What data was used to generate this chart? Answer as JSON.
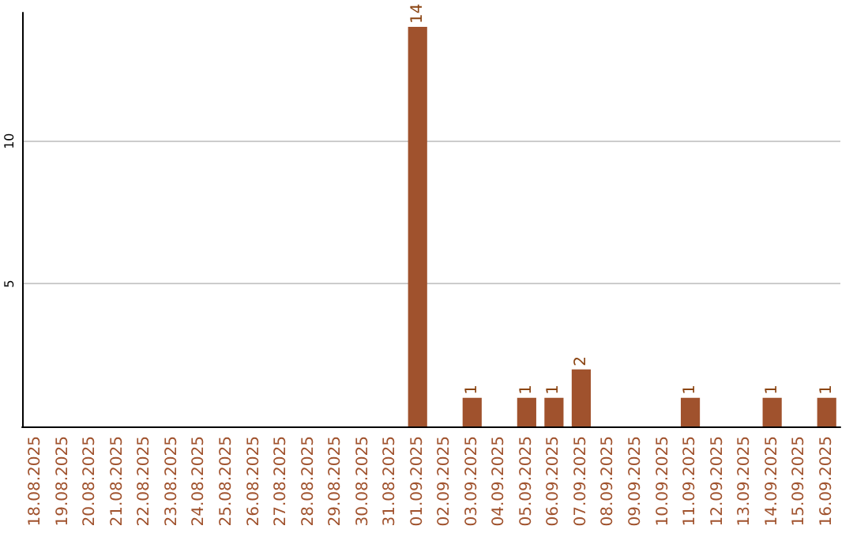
{
  "chart_data": {
    "type": "bar",
    "categories": [
      "18.08.2025",
      "19.08.2025",
      "20.08.2025",
      "21.08.2025",
      "22.08.2025",
      "23.08.2025",
      "24.08.2025",
      "25.08.2025",
      "26.08.2025",
      "27.08.2025",
      "28.08.2025",
      "29.08.2025",
      "30.08.2025",
      "31.08.2025",
      "01.09.2025",
      "02.09.2025",
      "03.09.2025",
      "04.09.2025",
      "05.09.2025",
      "06.09.2025",
      "07.09.2025",
      "08.09.2025",
      "09.09.2025",
      "10.09.2025",
      "11.09.2025",
      "12.09.2025",
      "13.09.2025",
      "14.09.2025",
      "15.09.2025",
      "16.09.2025"
    ],
    "values": [
      0,
      0,
      0,
      0,
      0,
      0,
      0,
      0,
      0,
      0,
      0,
      0,
      0,
      0,
      14,
      0,
      1,
      0,
      1,
      1,
      2,
      0,
      0,
      0,
      1,
      0,
      0,
      1,
      0,
      1
    ],
    "value_labels": [
      null,
      null,
      null,
      null,
      null,
      null,
      null,
      null,
      null,
      null,
      null,
      null,
      null,
      null,
      "14",
      null,
      "1",
      null,
      "1",
      "1",
      "2",
      null,
      null,
      null,
      "1",
      null,
      null,
      "1",
      null,
      "1"
    ],
    "color": "#a0522d",
    "ylim": [
      0,
      14.5
    ],
    "yticks": [
      {
        "value": 0,
        "label": null
      },
      5,
      10
    ],
    "grid": "y"
  }
}
